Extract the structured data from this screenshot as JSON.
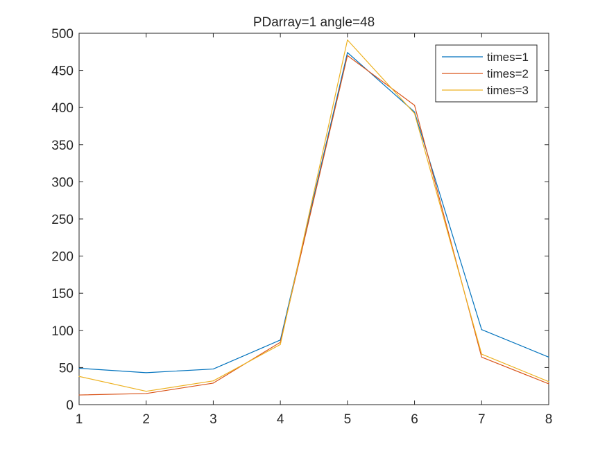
{
  "chart_data": {
    "type": "line",
    "title": "PDarray=1  angle=48",
    "xlabel": "",
    "ylabel": "",
    "x": [
      1,
      2,
      3,
      4,
      5,
      6,
      7,
      8
    ],
    "xlim": [
      1,
      8
    ],
    "ylim": [
      0,
      500
    ],
    "xticks": [
      1,
      2,
      3,
      4,
      5,
      6,
      7,
      8
    ],
    "yticks": [
      0,
      50,
      100,
      150,
      200,
      250,
      300,
      350,
      400,
      450,
      500
    ],
    "grid": false,
    "legend_position": "top-right",
    "series": [
      {
        "name": "times=1",
        "color": "#0072BD",
        "values": [
          49,
          43,
          48,
          87,
          474,
          394,
          101,
          64
        ]
      },
      {
        "name": "times=2",
        "color": "#D95319",
        "values": [
          13,
          15,
          29,
          84,
          470,
          403,
          64,
          28
        ]
      },
      {
        "name": "times=3",
        "color": "#EDB120",
        "values": [
          38,
          18,
          32,
          81,
          491,
          392,
          68,
          31
        ]
      }
    ]
  }
}
